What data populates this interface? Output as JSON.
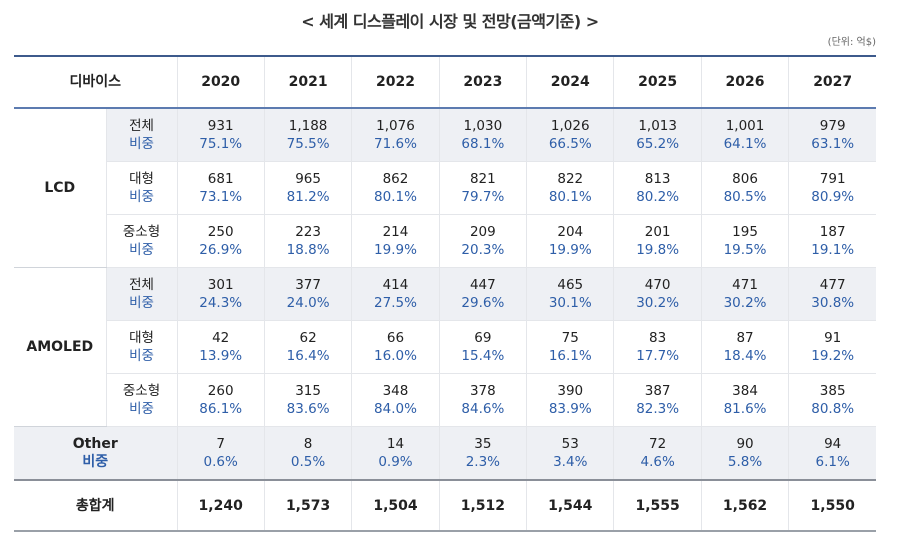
{
  "title": "< 세계 디스플레이 시장 및 전망(금액기준) >",
  "unit": "(단위: 억$)",
  "colors": {
    "accent_blue": "#2e5ea8",
    "header_border": "#3d5a8c",
    "row_shade": "#eef0f4"
  },
  "header": {
    "device": "디바이스",
    "years": [
      "2020",
      "2021",
      "2022",
      "2023",
      "2024",
      "2025",
      "2026",
      "2027"
    ]
  },
  "share_label": "비중",
  "groups": [
    {
      "name": "LCD",
      "rows": [
        {
          "label": "전체",
          "values": [
            "931",
            "1,188",
            "1,076",
            "1,030",
            "1,026",
            "1,013",
            "1,001",
            "979"
          ],
          "shares": [
            "75.1%",
            "75.5%",
            "71.6%",
            "68.1%",
            "66.5%",
            "65.2%",
            "64.1%",
            "63.1%"
          ]
        },
        {
          "label": "대형",
          "values": [
            "681",
            "965",
            "862",
            "821",
            "822",
            "813",
            "806",
            "791"
          ],
          "shares": [
            "73.1%",
            "81.2%",
            "80.1%",
            "79.7%",
            "80.1%",
            "80.2%",
            "80.5%",
            "80.9%"
          ]
        },
        {
          "label": "중소형",
          "values": [
            "250",
            "223",
            "214",
            "209",
            "204",
            "201",
            "195",
            "187"
          ],
          "shares": [
            "26.9%",
            "18.8%",
            "19.9%",
            "20.3%",
            "19.9%",
            "19.8%",
            "19.5%",
            "19.1%"
          ]
        }
      ]
    },
    {
      "name": "AMOLED",
      "rows": [
        {
          "label": "전체",
          "values": [
            "301",
            "377",
            "414",
            "447",
            "465",
            "470",
            "471",
            "477"
          ],
          "shares": [
            "24.3%",
            "24.0%",
            "27.5%",
            "29.6%",
            "30.1%",
            "30.2%",
            "30.2%",
            "30.8%"
          ]
        },
        {
          "label": "대형",
          "values": [
            "42",
            "62",
            "66",
            "69",
            "75",
            "83",
            "87",
            "91"
          ],
          "shares": [
            "13.9%",
            "16.4%",
            "16.0%",
            "15.4%",
            "16.1%",
            "17.7%",
            "18.4%",
            "19.2%"
          ]
        },
        {
          "label": "중소형",
          "values": [
            "260",
            "315",
            "348",
            "378",
            "390",
            "387",
            "384",
            "385"
          ],
          "shares": [
            "86.1%",
            "83.6%",
            "84.0%",
            "84.6%",
            "83.9%",
            "82.3%",
            "81.6%",
            "80.8%"
          ]
        }
      ]
    }
  ],
  "other": {
    "label": "Other",
    "values": [
      "7",
      "8",
      "14",
      "35",
      "53",
      "72",
      "90",
      "94"
    ],
    "shares": [
      "0.6%",
      "0.5%",
      "0.9%",
      "2.3%",
      "3.4%",
      "4.6%",
      "5.8%",
      "6.1%"
    ]
  },
  "total": {
    "label": "총합계",
    "values": [
      "1,240",
      "1,573",
      "1,504",
      "1,512",
      "1,544",
      "1,555",
      "1,562",
      "1,550"
    ]
  }
}
